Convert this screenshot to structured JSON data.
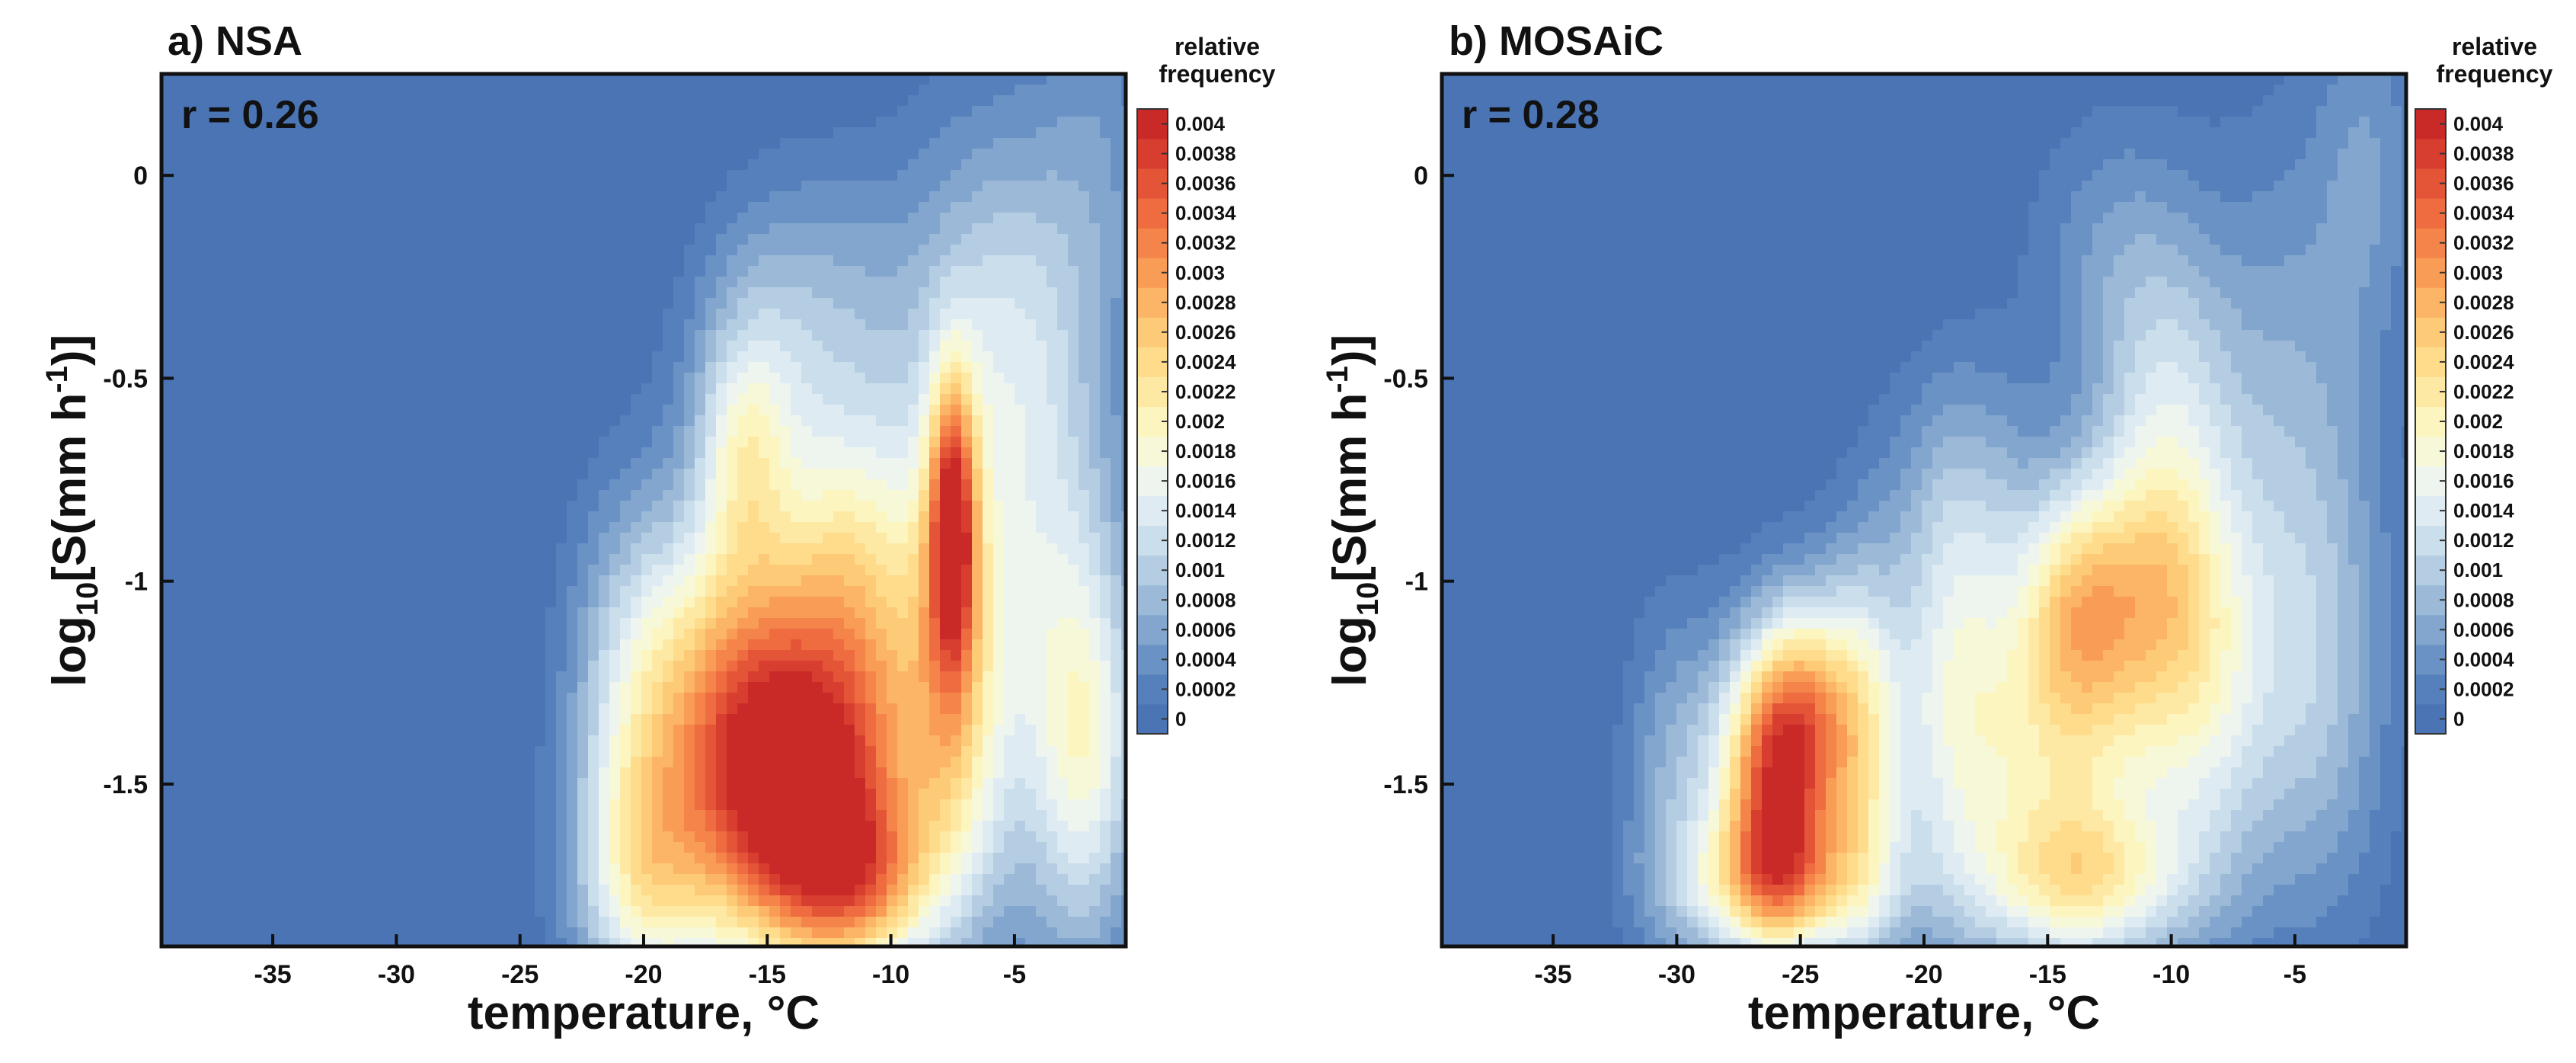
{
  "chart_data": [
    {
      "type": "heatmap",
      "panel_label": "a) NSA",
      "correlation_text": "r = 0.26",
      "xlabel": "temperature, °C",
      "ylabel_parts": [
        "log",
        "10",
        "[S(mm h",
        "-1",
        ")]"
      ],
      "xlim": [
        -39.5,
        -0.5
      ],
      "ylim": [
        -1.9,
        0.25
      ],
      "xticks": [
        -35,
        -30,
        -25,
        -20,
        -15,
        -10,
        -5
      ],
      "yticks": [
        0,
        -0.5,
        -1,
        -1.5
      ],
      "ytick_labels": [
        "0",
        "-0.5",
        "-1",
        "-1.5"
      ],
      "colorbar_title": [
        "relative",
        "frequency"
      ],
      "blobs": [
        {
          "x": -13.5,
          "y": -1.6,
          "sx": 3.2,
          "sy": 0.28,
          "a": 0.0036
        },
        {
          "x": -11.0,
          "y": -1.75,
          "sx": 2.0,
          "sy": 0.14,
          "a": 0.0012
        },
        {
          "x": -16.5,
          "y": -1.25,
          "sx": 2.5,
          "sy": 0.3,
          "a": 0.0022
        },
        {
          "x": -16.0,
          "y": -0.7,
          "sx": 1.3,
          "sy": 0.2,
          "a": 0.0011
        },
        {
          "x": -11.5,
          "y": -1.05,
          "sx": 2.5,
          "sy": 0.35,
          "a": 0.0022
        },
        {
          "x": -7.5,
          "y": -0.85,
          "sx": 0.7,
          "sy": 0.25,
          "a": 0.0028
        },
        {
          "x": -7.5,
          "y": -1.3,
          "sx": 1.4,
          "sy": 0.35,
          "a": 0.0014
        },
        {
          "x": -4.5,
          "y": -1.0,
          "sx": 2.5,
          "sy": 0.6,
          "a": 0.0012
        },
        {
          "x": -2.0,
          "y": -1.4,
          "sx": 1.5,
          "sy": 0.35,
          "a": 0.0014
        },
        {
          "x": -20.5,
          "y": -1.3,
          "sx": 1.8,
          "sy": 0.35,
          "a": 0.0011
        },
        {
          "x": -20.0,
          "y": -1.75,
          "sx": 2.0,
          "sy": 0.22,
          "a": 0.0014
        },
        {
          "x": -6.0,
          "y": -0.35,
          "sx": 3.0,
          "sy": 0.35,
          "a": 0.0008
        },
        {
          "x": -1.5,
          "y": 0.05,
          "sx": 1.6,
          "sy": 0.3,
          "a": 0.0004
        },
        {
          "x": -12.5,
          "y": -0.3,
          "sx": 2.5,
          "sy": 0.25,
          "a": 0.0005
        },
        {
          "x": -15.5,
          "y": -0.45,
          "sx": 2.0,
          "sy": 0.25,
          "a": 0.0007
        }
      ]
    },
    {
      "type": "heatmap",
      "panel_label": "b) MOSAiC",
      "correlation_text": "r = 0.28",
      "xlabel": "temperature, °C",
      "ylabel_parts": [
        "log",
        "10",
        "[S(mm h",
        "-1",
        ")]"
      ],
      "xlim": [
        -39.5,
        -0.5
      ],
      "ylim": [
        -1.9,
        0.25
      ],
      "xticks": [
        -35,
        -30,
        -25,
        -20,
        -15,
        -10,
        -5
      ],
      "yticks": [
        0,
        -0.5,
        -1,
        -1.5
      ],
      "ytick_labels": [
        "0",
        "-0.5",
        "-1",
        "-1.5"
      ],
      "colorbar_title": [
        "relative",
        "frequency"
      ],
      "blobs": [
        {
          "x": -26.0,
          "y": -1.5,
          "sx": 1.6,
          "sy": 0.25,
          "a": 0.0036
        },
        {
          "x": -24.5,
          "y": -1.3,
          "sx": 1.4,
          "sy": 0.2,
          "a": 0.0014
        },
        {
          "x": -26.0,
          "y": -1.75,
          "sx": 2.8,
          "sy": 0.12,
          "a": 0.0016
        },
        {
          "x": -22.5,
          "y": -1.45,
          "sx": 1.2,
          "sy": 0.35,
          "a": 0.0016
        },
        {
          "x": -14.5,
          "y": -1.4,
          "sx": 3.0,
          "sy": 0.3,
          "a": 0.0018
        },
        {
          "x": -13.5,
          "y": -1.75,
          "sx": 3.0,
          "sy": 0.14,
          "a": 0.0016
        },
        {
          "x": -11.0,
          "y": -1.0,
          "sx": 2.2,
          "sy": 0.25,
          "a": 0.0018
        },
        {
          "x": -14.0,
          "y": -1.05,
          "sx": 1.5,
          "sy": 0.2,
          "a": 0.0012
        },
        {
          "x": -8.5,
          "y": -1.3,
          "sx": 2.0,
          "sy": 0.35,
          "a": 0.0012
        },
        {
          "x": -10.0,
          "y": -0.55,
          "sx": 2.0,
          "sy": 0.25,
          "a": 0.0009
        },
        {
          "x": -5.0,
          "y": -0.6,
          "sx": 2.5,
          "sy": 0.5,
          "a": 0.0007
        },
        {
          "x": -19.0,
          "y": -1.3,
          "sx": 1.8,
          "sy": 0.4,
          "a": 0.0012
        },
        {
          "x": -18.0,
          "y": -0.8,
          "sx": 2.2,
          "sy": 0.25,
          "a": 0.0006
        },
        {
          "x": -12.0,
          "y": -0.2,
          "sx": 2.5,
          "sy": 0.25,
          "a": 0.0006
        },
        {
          "x": -30.0,
          "y": -1.5,
          "sx": 1.5,
          "sy": 0.3,
          "a": 0.0008
        },
        {
          "x": -2.0,
          "y": 0.05,
          "sx": 1.5,
          "sy": 0.3,
          "a": 0.0005
        },
        {
          "x": -4.0,
          "y": -1.3,
          "sx": 2.0,
          "sy": 0.4,
          "a": 0.0008
        }
      ]
    }
  ],
  "colorbar": {
    "levels": [
      0,
      0.0002,
      0.0004,
      0.0006,
      0.0008,
      0.001,
      0.0012,
      0.0014,
      0.0016,
      0.0018,
      0.002,
      0.0022,
      0.0024,
      0.0026,
      0.0028,
      0.003,
      0.0032,
      0.0034,
      0.0036,
      0.0038,
      0.004
    ],
    "labels": [
      "0",
      "0.0002",
      "0.0004",
      "0.0006",
      "0.0008",
      "0.001",
      "0.0012",
      "0.0014",
      "0.0016",
      "0.0018",
      "0.002",
      "0.0022",
      "0.0024",
      "0.0026",
      "0.0028",
      "0.003",
      "0.0032",
      "0.0034",
      "0.0036",
      "0.0038",
      "0.004"
    ],
    "colors": [
      "#4a74b4",
      "#5580bb",
      "#6a92c4",
      "#82a6ce",
      "#9cbad8",
      "#b4cde3",
      "#cbdeec",
      "#dfebf3",
      "#eef5ef",
      "#f7f8d8",
      "#fdf5bf",
      "#fee9a4",
      "#fedc8c",
      "#fdcb78",
      "#fcb466",
      "#f99c56",
      "#f5844a",
      "#ee6c40",
      "#e45538",
      "#d73e30",
      "#c92a28"
    ]
  }
}
